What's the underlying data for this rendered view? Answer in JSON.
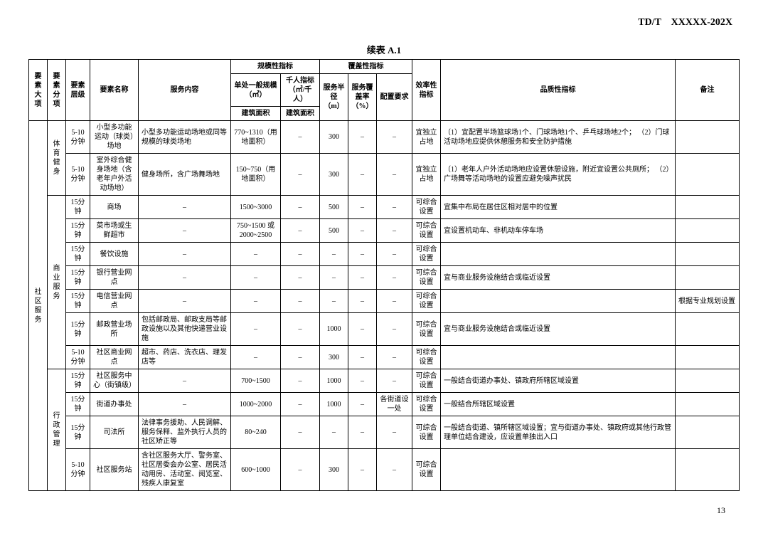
{
  "doc_id": "TD/T　XXXXX-202X",
  "table_title": "续表 A.1",
  "page_num": "13",
  "headers": {
    "h_dimension": "要素大项",
    "h_subdim": "要素分项",
    "h_level": "要素层级",
    "h_name": "要素名称",
    "h_content": "服务内容",
    "h_scale": "规模性指标",
    "h_single": "单处一般规模（㎡）",
    "h_per1000": "千人指标（㎡/千人）",
    "h_areabuild": "建筑面积",
    "h_areabuild2": "建筑面积",
    "h_coverage": "覆盖性指标",
    "h_radius": "服务半径（m）",
    "h_coverrate": "服务覆盖率（%）",
    "h_config": "配置要求",
    "h_eff": "效率性指标",
    "h_quality": "品质性指标",
    "h_remark": "备注"
  },
  "dim_main": "社区服务",
  "sub1": "体育健身",
  "sub2": "商业服务",
  "sub3": "行政管理",
  "rows": {
    "r1": {
      "lvl": "5-10分钟",
      "name": "小型多功能运动（球类）场地",
      "content": "小型多功能运动场地或同等规模的球类场地",
      "scale": "770~1310（用地面积）",
      "per1000": "–",
      "radius": "300",
      "cover": "–",
      "cfg": "–",
      "eff": "宜独立占地",
      "quality": "（1）宜配置半场篮球场1个、门球场地1个、乒乓球场地2个；\n（2）门球活动场地应提供休憩服务和安全防护措施",
      "remark": ""
    },
    "r2": {
      "lvl": "5-10分钟",
      "name": "室外综合健身场地（含老年户外活动场地）",
      "content": "健身场所，含广场舞场地",
      "scale": "150~750（用地面积）",
      "per1000": "–",
      "radius": "300",
      "cover": "–",
      "cfg": "–",
      "eff": "宜独立占地",
      "quality": "（1）老年人户外活动场地应设置休憩设施，附近宜设置公共厕所；\n（2）广场舞等活动场地的设置应避免噪声扰民",
      "remark": ""
    },
    "r3": {
      "lvl": "15分钟",
      "name": "商场",
      "content": "–",
      "scale": "1500~3000",
      "per1000": "–",
      "radius": "500",
      "cover": "–",
      "cfg": "–",
      "eff": "可综合设置",
      "quality": "宜集中布局在居住区相对居中的位置",
      "remark": ""
    },
    "r4": {
      "lvl": "15分钟",
      "name": "菜市场或生鲜超市",
      "content": "–",
      "scale": "750~1500 或 2000~2500",
      "per1000": "–",
      "radius": "500",
      "cover": "–",
      "cfg": "–",
      "eff": "可综合设置",
      "quality": "宜设置机动车、非机动车停车场",
      "remark": ""
    },
    "r5": {
      "lvl": "15分钟",
      "name": "餐饮设施",
      "content": "–",
      "scale": "–",
      "per1000": "–",
      "radius": "–",
      "cover": "–",
      "cfg": "–",
      "eff": "可综合设置",
      "quality": "",
      "remark": ""
    },
    "r6": {
      "lvl": "15分钟",
      "name": "银行营业网点",
      "content": "–",
      "scale": "–",
      "per1000": "–",
      "radius": "–",
      "cover": "–",
      "cfg": "–",
      "eff": "可综合设置",
      "quality": "宜与商业服务设施结合或临近设置",
      "remark": ""
    },
    "r7": {
      "lvl": "15分钟",
      "name": "电信营业网点",
      "content": "–",
      "scale": "–",
      "per1000": "–",
      "radius": "–",
      "cover": "–",
      "cfg": "–",
      "eff": "可综合设置",
      "quality": "",
      "remark": "根据专业规划设置"
    },
    "r8": {
      "lvl": "15分钟",
      "name": "邮政营业场所",
      "content": "包括邮政局、邮政支局等邮政设施以及其他快递营业设施",
      "scale": "–",
      "per1000": "–",
      "radius": "1000",
      "cover": "–",
      "cfg": "–",
      "eff": "可综合设置",
      "quality": "宜与商业服务设施结合或临近设置",
      "remark": ""
    },
    "r9": {
      "lvl": "5-10分钟",
      "name": "社区商业网点",
      "content": "超市、药店、洗衣店、理发店等",
      "scale": "–",
      "per1000": "–",
      "radius": "300",
      "cover": "–",
      "cfg": "–",
      "eff": "可综合设置",
      "quality": "",
      "remark": ""
    },
    "r10": {
      "lvl": "15分钟",
      "name": "社区服务中心（街镇级）",
      "content": "–",
      "scale": "700~1500",
      "per1000": "–",
      "radius": "1000",
      "cover": "–",
      "cfg": "–",
      "eff": "可综合设置",
      "quality": "一般结合街道办事处、镇政府所辖区域设置",
      "remark": ""
    },
    "r11": {
      "lvl": "15分钟",
      "name": "街道办事处",
      "content": "–",
      "scale": "1000~2000",
      "per1000": "–",
      "radius": "1000",
      "cover": "–",
      "cfg": "各街道设一处",
      "eff": "可综合设置",
      "quality": "一般结合所辖区域设置",
      "remark": ""
    },
    "r12": {
      "lvl": "15分钟",
      "name": "司法所",
      "content": "法律事务援助、人民调解、服务保释、监外执行人员的社区矫正等",
      "scale": "80~240",
      "per1000": "–",
      "radius": "–",
      "cover": "–",
      "cfg": "–",
      "eff": "可综合设置",
      "quality": "一般结合街道、镇所辖区域设置；宜与街道办事处、镇政府或其他行政管理单位结合建设，应设置单独出入口",
      "remark": ""
    },
    "r13": {
      "lvl": "5-10分钟",
      "name": "社区服务站",
      "content": "含社区服务大厅、警务室、社区居委会办公室、居民活动用房、活动室、阅览室、残疾人康复室",
      "scale": "600~1000",
      "per1000": "–",
      "radius": "300",
      "cover": "–",
      "cfg": "–",
      "eff": "可综合设置",
      "quality": "",
      "remark": ""
    }
  }
}
